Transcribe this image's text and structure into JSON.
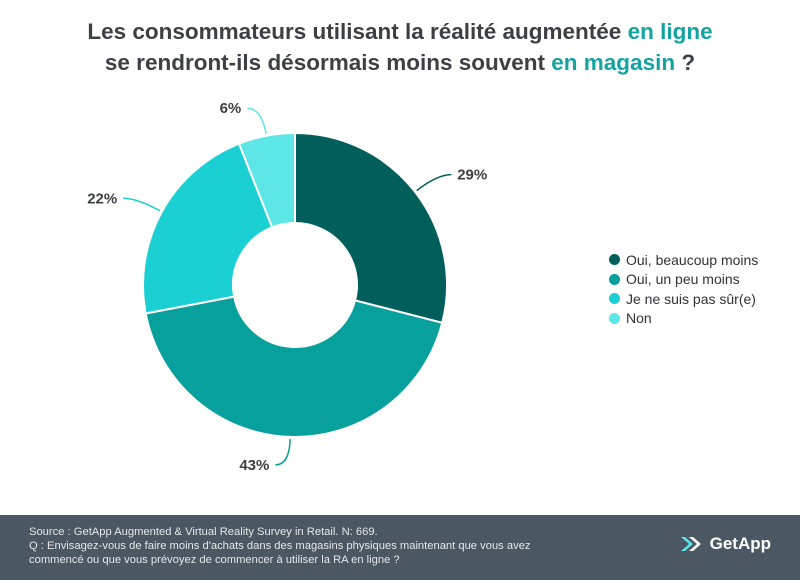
{
  "title": {
    "line1_text": "Les consommateurs utilisant la réalité augmentée ",
    "line1_highlight": "en ligne",
    "line2_text": "se rendront-ils désormais moins souvent ",
    "line2_highlight": "en magasin",
    "line2_end": " ?"
  },
  "colors": {
    "title_text": "#3c4044",
    "highlight": "#13a3a0",
    "footer_bg": "#4b5762"
  },
  "chart_data": {
    "type": "pie",
    "variant": "donut",
    "categories": [
      "Oui, beaucoup moins",
      "Oui, un peu moins",
      "Je ne suis pas sûr(e)",
      "Non"
    ],
    "values": [
      29,
      43,
      22,
      6
    ],
    "labels": [
      "29%",
      "43%",
      "22%",
      "6%"
    ],
    "colors": [
      "#015f5b",
      "#08a09c",
      "#1bd0d2",
      "#5ce6e6"
    ],
    "legend": "right",
    "start": "top, clockwise"
  },
  "footer": {
    "source": "Source : GetApp Augmented & Virtual Reality Survey in Retail. N: 669.",
    "question_line1": "Q : Envisagez-vous de faire moins d'achats dans des magasins physiques maintenant que vous avez",
    "question_line2": "commencé ou que vous prévoyez de commencer à utiliser la RA en ligne ?",
    "brand": "GetApp"
  }
}
